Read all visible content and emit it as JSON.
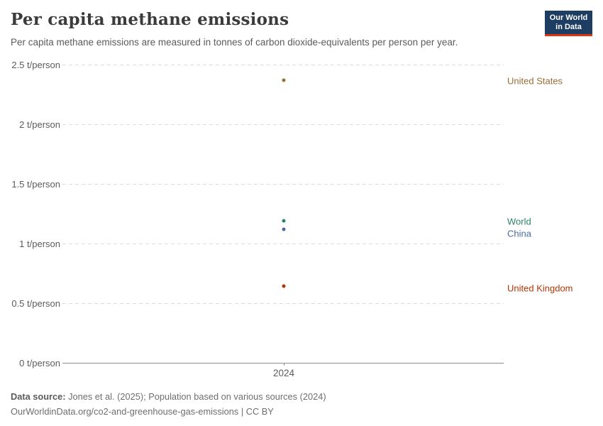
{
  "header": {
    "title": "Per capita methane emissions",
    "subtitle": "Per capita methane emissions are measured in tonnes of carbon dioxide-equivalents per person per year."
  },
  "logo": {
    "line1": "Our World",
    "line2": "in Data",
    "bg_color": "#1d3d63",
    "accent_color": "#dc3411"
  },
  "chart_data": {
    "type": "scatter",
    "title": "Per capita methane emissions",
    "subtitle": "Per capita methane emissions are measured in tonnes of carbon dioxide-equivalents per person per year.",
    "unit": "t/person",
    "x_ticks": [
      {
        "value": 2024,
        "label": "2024"
      }
    ],
    "y_ticks": [
      {
        "value": 0,
        "label": "0 t/person"
      },
      {
        "value": 0.5,
        "label": "0.5 t/person"
      },
      {
        "value": 1,
        "label": "1 t/person"
      },
      {
        "value": 1.5,
        "label": "1.5 t/person"
      },
      {
        "value": 2,
        "label": "2 t/person"
      },
      {
        "value": 2.5,
        "label": "2.5 t/person"
      }
    ],
    "ylim": [
      0,
      2.5
    ],
    "xlim_year": 2024,
    "grid": "horizontal-dashed",
    "legend_position": "right-inline-labels",
    "series": [
      {
        "name": "United States",
        "x": 2024,
        "value": 2.37,
        "color": "#996D39",
        "label_dy": 0
      },
      {
        "name": "World",
        "x": 2024,
        "value": 1.19,
        "color": "#2C8465",
        "label_dy": 0
      },
      {
        "name": "China",
        "x": 2024,
        "value": 1.12,
        "color": "#4C6A9C",
        "label_dy": 5
      },
      {
        "name": "United Kingdom",
        "x": 2024,
        "value": 0.64,
        "color": "#B13507",
        "label_dy": 2
      }
    ]
  },
  "footer": {
    "datasource_label": "Data source:",
    "datasource_text": " Jones et al. (2025); Population based on various sources (2024)",
    "note": "OurWorldinData.org/co2-and-greenhouse-gas-emissions | CC BY"
  }
}
